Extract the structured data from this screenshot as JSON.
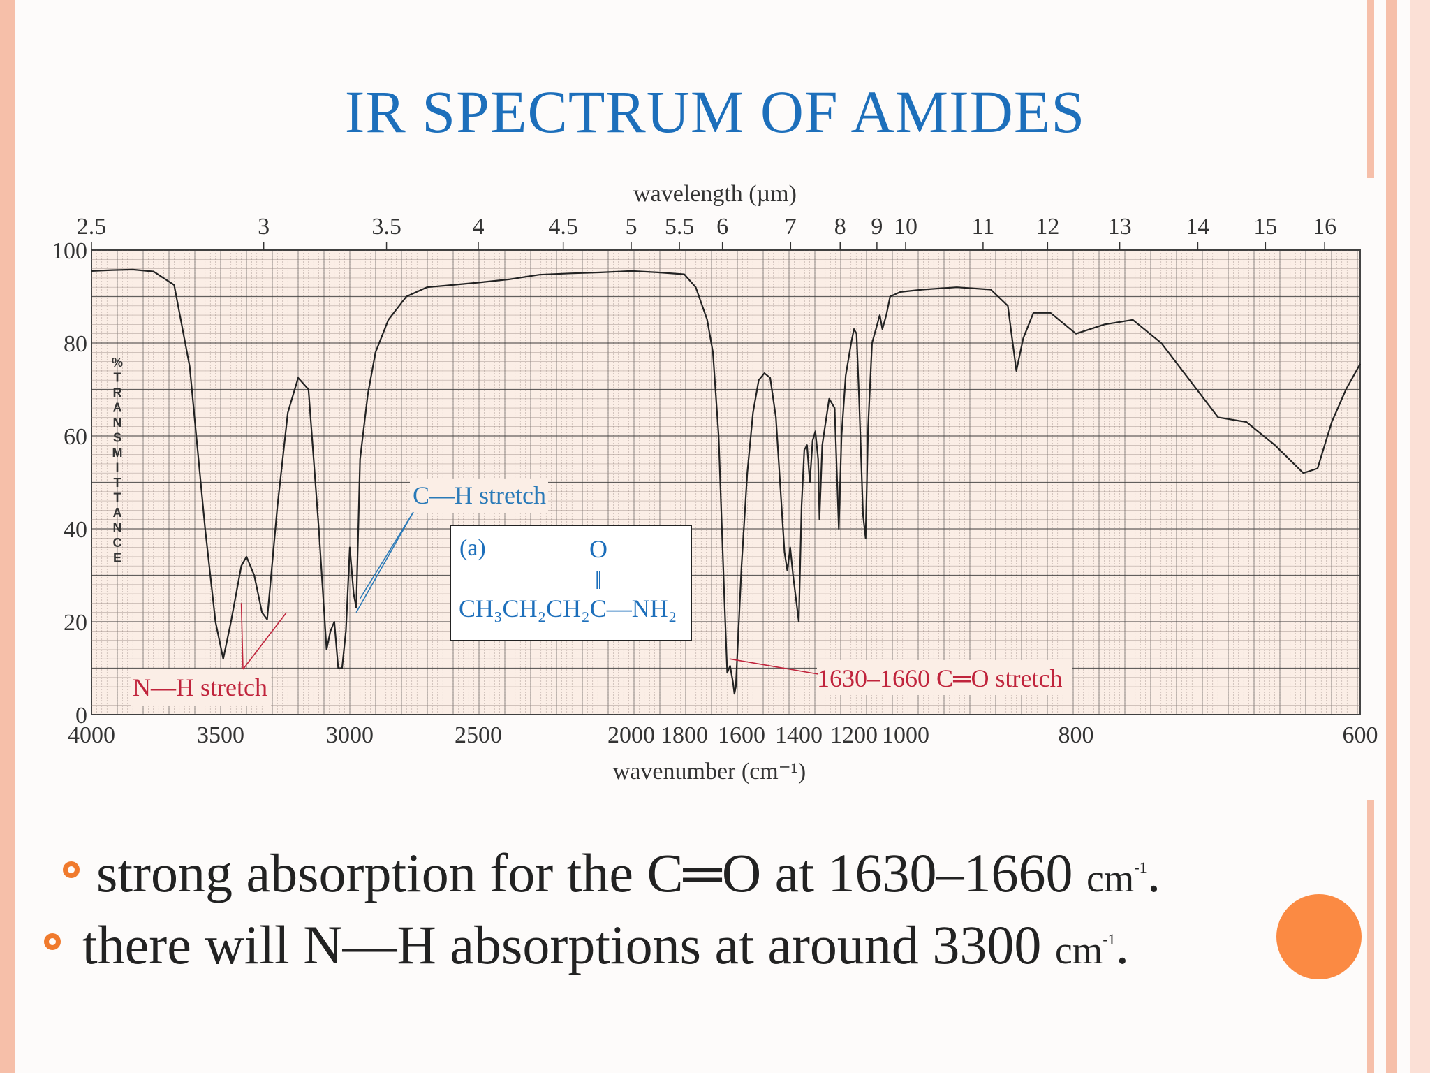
{
  "slide_title": "IR SPECTRUM OF AMIDES",
  "chart_data": {
    "type": "line",
    "x_axis_bottom": {
      "label": "wavenumber (cm⁻¹)",
      "ticks": [
        "4000",
        "3500",
        "3000",
        "2500",
        "2000",
        "1800",
        "1600",
        "1400",
        "1200",
        "1000",
        "800",
        "600"
      ]
    },
    "x_axis_top": {
      "label": "wavelength (µm)",
      "ticks": [
        "2.5",
        "3",
        "3.5",
        "4",
        "4.5",
        "5",
        "5.5",
        "6",
        "7",
        "8",
        "9",
        "10",
        "11",
        "12",
        "13",
        "14",
        "15",
        "16"
      ]
    },
    "y_axis": {
      "label": "% TRANSMITTANCE",
      "ticks": [
        "0",
        "20",
        "40",
        "60",
        "80",
        "100"
      ],
      "ylim": [
        0,
        100
      ]
    },
    "grid": true,
    "series": [
      {
        "values": [
          [
            4000,
            95.5
          ],
          [
            3920,
            95.7
          ],
          [
            3840,
            95.8
          ],
          [
            3760,
            95.4
          ],
          [
            3680,
            92.5
          ],
          [
            3620,
            75
          ],
          [
            3560,
            40
          ],
          [
            3520,
            20
          ],
          [
            3490,
            12
          ],
          [
            3460,
            20
          ],
          [
            3420,
            32
          ],
          [
            3400,
            34
          ],
          [
            3370,
            30
          ],
          [
            3340,
            22
          ],
          [
            3320,
            20.5
          ],
          [
            3280,
            45
          ],
          [
            3240,
            65
          ],
          [
            3200,
            72.5
          ],
          [
            3160,
            70
          ],
          [
            3120,
            40
          ],
          [
            3090,
            14
          ],
          [
            3075,
            18
          ],
          [
            3060,
            20
          ],
          [
            3045,
            10
          ],
          [
            3030,
            10
          ],
          [
            3015,
            18
          ],
          [
            3000,
            36
          ],
          [
            2985,
            26
          ],
          [
            2975,
            23
          ],
          [
            2960,
            55
          ],
          [
            2930,
            69
          ],
          [
            2900,
            78
          ],
          [
            2850,
            85
          ],
          [
            2780,
            90
          ],
          [
            2700,
            92
          ],
          [
            2600,
            92.5
          ],
          [
            2500,
            93
          ],
          [
            2400,
            93.7
          ],
          [
            2300,
            94.7
          ],
          [
            2200,
            95
          ],
          [
            2100,
            95.2
          ],
          [
            2000,
            95.5
          ],
          [
            1900,
            95.2
          ],
          [
            1800,
            94.8
          ],
          [
            1760,
            92
          ],
          [
            1720,
            85
          ],
          [
            1700,
            78
          ],
          [
            1680,
            60
          ],
          [
            1660,
            25
          ],
          [
            1650,
            9
          ],
          [
            1640,
            10.5
          ],
          [
            1630,
            7
          ],
          [
            1625,
            4.5
          ],
          [
            1620,
            6
          ],
          [
            1600,
            32
          ],
          [
            1580,
            52
          ],
          [
            1560,
            65
          ],
          [
            1540,
            72
          ],
          [
            1520,
            73.5
          ],
          [
            1500,
            72.5
          ],
          [
            1480,
            64
          ],
          [
            1450,
            35
          ],
          [
            1440,
            31
          ],
          [
            1430,
            36
          ],
          [
            1420,
            30
          ],
          [
            1410,
            25
          ],
          [
            1400,
            20
          ],
          [
            1390,
            45
          ],
          [
            1380,
            57
          ],
          [
            1370,
            58
          ],
          [
            1360,
            50
          ],
          [
            1350,
            59
          ],
          [
            1340,
            61
          ],
          [
            1330,
            55
          ],
          [
            1325,
            42
          ],
          [
            1315,
            58
          ],
          [
            1305,
            62
          ],
          [
            1290,
            68
          ],
          [
            1270,
            66
          ],
          [
            1255,
            40
          ],
          [
            1245,
            60
          ],
          [
            1230,
            73
          ],
          [
            1210,
            80
          ],
          [
            1200,
            83
          ],
          [
            1190,
            82
          ],
          [
            1180,
            68
          ],
          [
            1165,
            43
          ],
          [
            1155,
            38
          ],
          [
            1145,
            62
          ],
          [
            1130,
            80
          ],
          [
            1110,
            84
          ],
          [
            1100,
            86
          ],
          [
            1090,
            83
          ],
          [
            1075,
            86
          ],
          [
            1060,
            90
          ],
          [
            1020,
            91
          ],
          [
            980,
            91.5
          ],
          [
            940,
            92
          ],
          [
            900,
            91.5
          ],
          [
            880,
            88
          ],
          [
            870,
            74
          ],
          [
            862,
            81
          ],
          [
            850,
            86.5
          ],
          [
            830,
            86.5
          ],
          [
            800,
            82
          ],
          [
            780,
            84
          ],
          [
            760,
            85
          ],
          [
            740,
            80
          ],
          [
            720,
            72
          ],
          [
            700,
            64
          ],
          [
            680,
            63
          ],
          [
            660,
            58
          ],
          [
            640,
            52
          ],
          [
            630,
            53
          ],
          [
            620,
            63
          ],
          [
            610,
            70
          ],
          [
            600,
            75.5
          ]
        ]
      }
    ],
    "annotations": {
      "nh": "N—H stretch",
      "ch": "C—H stretch",
      "co": "1630–1660 C═O stretch"
    },
    "inset": {
      "label": "(a)",
      "formula_top": "O",
      "formula_bond": "‖",
      "formula_main": "CH₃CH₂CH₂C—NH₂"
    },
    "colors": {
      "grid_bg": "#fbeee6",
      "grid_line": "#8a7a74",
      "grid_major": "#3c3c3c",
      "curve": "#222222",
      "annotation_red": "#c0243c",
      "annotation_blue": "#2a7ab8",
      "formula_blue": "#1d6fbb"
    }
  },
  "bullets": [
    {
      "text": "strong absorption for the C═O at 1630–1660 ",
      "unit": "cm",
      "sup": "-1",
      "end": "."
    },
    {
      "text": "there will N—H absorptions at around 3300 ",
      "unit": "cm",
      "sup": "-1",
      "end": "."
    }
  ]
}
